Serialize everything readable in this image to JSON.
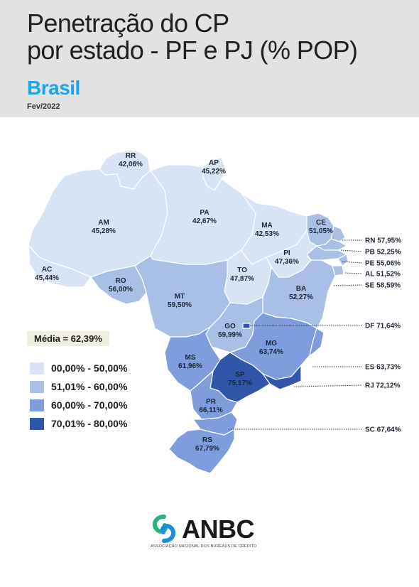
{
  "header": {
    "title": "Penetração do CP\npor estado - PF e PJ (% POP)",
    "subtitle": "Brasil",
    "date": "Fev/2022"
  },
  "colors": {
    "c1": "#d8e3f4",
    "c2": "#a9bfe6",
    "c3": "#7f9cdc",
    "c4": "#2f56a8",
    "subtitle": "#1aa6e6",
    "logo_green": "#25b47a",
    "logo_blue": "#1a8fd8"
  },
  "average": "Média = 62,39%",
  "legend": [
    {
      "label": "00,00% - 50,00%",
      "color": "#d8e3f4"
    },
    {
      "label": "51,01% - 60,00%",
      "color": "#a9bfe6"
    },
    {
      "label": "60,00% - 70,00%",
      "color": "#7f9cdc"
    },
    {
      "label": "70,01% - 80,00%",
      "color": "#2f56a8"
    }
  ],
  "states": [
    {
      "code": "RR",
      "value": "42,06%",
      "pct": 42.06
    },
    {
      "code": "AP",
      "value": "45,22%",
      "pct": 45.22
    },
    {
      "code": "AM",
      "value": "45,28%",
      "pct": 45.28
    },
    {
      "code": "PA",
      "value": "42,67%",
      "pct": 42.67
    },
    {
      "code": "MA",
      "value": "42,53%",
      "pct": 42.53
    },
    {
      "code": "CE",
      "value": "51,05%",
      "pct": 51.05
    },
    {
      "code": "AC",
      "value": "45,44%",
      "pct": 45.44
    },
    {
      "code": "PI",
      "value": "47,36%",
      "pct": 47.36
    },
    {
      "code": "TO",
      "value": "47,87%",
      "pct": 47.87
    },
    {
      "code": "RO",
      "value": "56,00%",
      "pct": 56.0
    },
    {
      "code": "BA",
      "value": "52,27%",
      "pct": 52.27
    },
    {
      "code": "MT",
      "value": "59,50%",
      "pct": 59.5
    },
    {
      "code": "GO",
      "value": "59,99%",
      "pct": 59.99
    },
    {
      "code": "MG",
      "value": "63,74%",
      "pct": 63.74
    },
    {
      "code": "MS",
      "value": "61,96%",
      "pct": 61.96
    },
    {
      "code": "SP",
      "value": "75,17%",
      "pct": 75.17
    },
    {
      "code": "PR",
      "value": "66,11%",
      "pct": 66.11
    },
    {
      "code": "RS",
      "value": "67,79%",
      "pct": 67.79
    }
  ],
  "callouts": [
    {
      "code": "RN",
      "value": "57,95%",
      "label": "RN 57,95%",
      "pct": 57.95
    },
    {
      "code": "PB",
      "value": "52,25%",
      "label": "PB 52,25%",
      "pct": 52.25
    },
    {
      "code": "PE",
      "value": "55,06%",
      "label": "PE 55,06%",
      "pct": 55.06
    },
    {
      "code": "AL",
      "value": "51,52%",
      "label": "AL 51,52%",
      "pct": 51.52
    },
    {
      "code": "SE",
      "value": "58,59%",
      "label": "SE 58,59%",
      "pct": 58.59
    },
    {
      "code": "DF",
      "value": "71,64%",
      "label": "DF 71,64%",
      "pct": 71.64
    },
    {
      "code": "ES",
      "value": "63,73%",
      "label": "ES 63,73%",
      "pct": 63.73
    },
    {
      "code": "RJ",
      "value": "72,12%",
      "label": "RJ 72,12%",
      "pct": 72.12
    },
    {
      "code": "SC",
      "value": "67,64%",
      "label": "SC 67,64%",
      "pct": 67.64
    }
  ],
  "logo": {
    "name": "ANBC",
    "tagline": "ASSOCIAÇÃO NACIONAL DOS BUREAUS DE CRÉDITO"
  }
}
